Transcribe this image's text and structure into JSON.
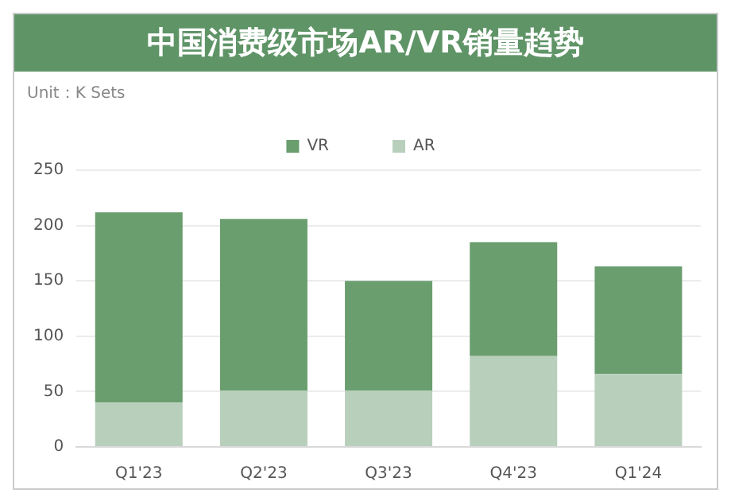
{
  "chart_data": {
    "type": "bar",
    "title": "中国消费级市场AR/VR销量趋势",
    "annotations": [
      "Unit：K Sets"
    ],
    "categories": [
      "Q1'23",
      "Q2'23",
      "Q3'23",
      "Q4'23",
      "Q1'24"
    ],
    "stacked": true,
    "series": [
      {
        "name": "AR",
        "color": "#b8cfbc",
        "values": [
          40,
          51,
          51,
          82,
          66
        ]
      },
      {
        "name": "VR",
        "color": "#6a9e6f",
        "values": [
          172,
          155,
          99,
          103,
          97
        ]
      }
    ],
    "ylim": [
      0,
      250
    ],
    "yticks": [
      0,
      50,
      100,
      150,
      200,
      250
    ],
    "grid": "y",
    "legend": "top"
  }
}
